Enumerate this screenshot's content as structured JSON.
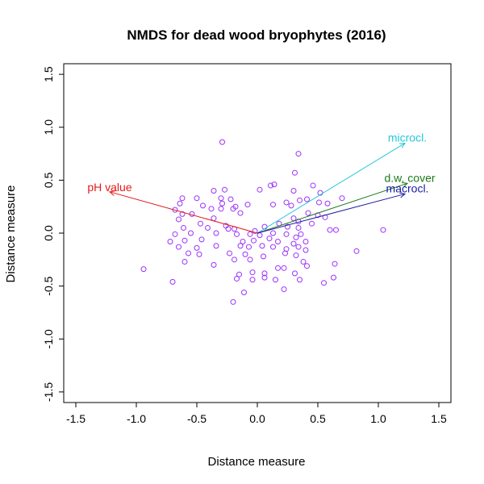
{
  "chart_data": {
    "type": "scatter",
    "title": "NMDS for dead wood bryophytes (2016)",
    "xlabel": "Distance measure",
    "ylabel": "Distance measure",
    "xlim": [
      -1.6,
      1.6
    ],
    "ylim": [
      -1.6,
      1.6
    ],
    "xticks": [
      -1.5,
      -1.0,
      -0.5,
      0.0,
      0.5,
      1.0,
      1.5
    ],
    "yticks": [
      -1.5,
      -1.0,
      -0.5,
      0.0,
      0.5,
      1.0,
      1.5
    ],
    "xtick_labels": [
      "-1.5",
      "-1.0",
      "-0.5",
      "0.0",
      "0.5",
      "1.0",
      "1.5"
    ],
    "ytick_labels": [
      "-1.5",
      "-1.0",
      "-0.5",
      "0.0",
      "0.5",
      "1.0",
      "1.5"
    ],
    "grid": false,
    "point_color": "#9b30ff",
    "points": [
      {
        "x": -0.29,
        "y": 0.86
      },
      {
        "x": 0.34,
        "y": 0.75
      },
      {
        "x": 0.31,
        "y": 0.57
      },
      {
        "x": 0.46,
        "y": 0.45
      },
      {
        "x": 0.14,
        "y": 0.46
      },
      {
        "x": 0.11,
        "y": 0.45
      },
      {
        "x": -0.36,
        "y": 0.4
      },
      {
        "x": -0.27,
        "y": 0.41
      },
      {
        "x": 0.02,
        "y": 0.41
      },
      {
        "x": 0.3,
        "y": 0.4
      },
      {
        "x": 0.52,
        "y": 0.38
      },
      {
        "x": -0.62,
        "y": 0.33
      },
      {
        "x": -0.5,
        "y": 0.33
      },
      {
        "x": -0.3,
        "y": 0.33
      },
      {
        "x": -0.22,
        "y": 0.32
      },
      {
        "x": 0.41,
        "y": 0.32
      },
      {
        "x": 0.7,
        "y": 0.33
      },
      {
        "x": -0.64,
        "y": 0.28
      },
      {
        "x": -0.29,
        "y": 0.28
      },
      {
        "x": 0.24,
        "y": 0.29
      },
      {
        "x": 0.35,
        "y": 0.31
      },
      {
        "x": 0.51,
        "y": 0.29
      },
      {
        "x": 0.58,
        "y": 0.28
      },
      {
        "x": -0.45,
        "y": 0.26
      },
      {
        "x": -0.18,
        "y": 0.25
      },
      {
        "x": -0.08,
        "y": 0.27
      },
      {
        "x": 0.13,
        "y": 0.27
      },
      {
        "x": 0.28,
        "y": 0.26
      },
      {
        "x": -0.68,
        "y": 0.22
      },
      {
        "x": -0.38,
        "y": 0.23
      },
      {
        "x": -0.3,
        "y": 0.23
      },
      {
        "x": -0.2,
        "y": 0.23
      },
      {
        "x": -0.62,
        "y": 0.18
      },
      {
        "x": -0.54,
        "y": 0.18
      },
      {
        "x": -0.14,
        "y": 0.19
      },
      {
        "x": 0.42,
        "y": 0.19
      },
      {
        "x": 0.5,
        "y": 0.17
      },
      {
        "x": 0.56,
        "y": 0.15
      },
      {
        "x": -0.65,
        "y": 0.13
      },
      {
        "x": -0.36,
        "y": 0.14
      },
      {
        "x": 0.3,
        "y": 0.14
      },
      {
        "x": -0.47,
        "y": 0.09
      },
      {
        "x": -0.26,
        "y": 0.07
      },
      {
        "x": 0.18,
        "y": 0.09
      },
      {
        "x": 0.34,
        "y": 0.11
      },
      {
        "x": 0.45,
        "y": 0.09
      },
      {
        "x": -0.61,
        "y": 0.05
      },
      {
        "x": -0.41,
        "y": 0.05
      },
      {
        "x": -0.24,
        "y": 0.04
      },
      {
        "x": -0.19,
        "y": 0.04
      },
      {
        "x": 0.06,
        "y": 0.06
      },
      {
        "x": 0.25,
        "y": 0.06
      },
      {
        "x": 0.34,
        "y": 0.05
      },
      {
        "x": 0.6,
        "y": 0.03
      },
      {
        "x": 0.65,
        "y": 0.03
      },
      {
        "x": 1.04,
        "y": 0.03
      },
      {
        "x": -0.68,
        "y": -0.01
      },
      {
        "x": -0.55,
        "y": 0.0
      },
      {
        "x": -0.34,
        "y": 0.0
      },
      {
        "x": -0.17,
        "y": -0.01
      },
      {
        "x": -0.06,
        "y": -0.01
      },
      {
        "x": -0.02,
        "y": 0.02
      },
      {
        "x": 0.02,
        "y": -0.02
      },
      {
        "x": 0.13,
        "y": 0.0
      },
      {
        "x": 0.24,
        "y": -0.01
      },
      {
        "x": 0.36,
        "y": -0.01
      },
      {
        "x": 0.32,
        "y": -0.04
      },
      {
        "x": -0.72,
        "y": -0.08
      },
      {
        "x": -0.6,
        "y": -0.07
      },
      {
        "x": -0.46,
        "y": -0.06
      },
      {
        "x": -0.12,
        "y": -0.08
      },
      {
        "x": -0.03,
        "y": -0.07
      },
      {
        "x": 0.1,
        "y": -0.05
      },
      {
        "x": 0.17,
        "y": -0.08
      },
      {
        "x": 0.3,
        "y": -0.1
      },
      {
        "x": 0.4,
        "y": -0.08
      },
      {
        "x": -0.65,
        "y": -0.13
      },
      {
        "x": -0.5,
        "y": -0.14
      },
      {
        "x": -0.34,
        "y": -0.12
      },
      {
        "x": -0.14,
        "y": -0.12
      },
      {
        "x": -0.07,
        "y": -0.13
      },
      {
        "x": 0.04,
        "y": -0.12
      },
      {
        "x": 0.13,
        "y": -0.13
      },
      {
        "x": 0.24,
        "y": -0.15
      },
      {
        "x": 0.34,
        "y": -0.13
      },
      {
        "x": 0.4,
        "y": -0.16
      },
      {
        "x": 0.82,
        "y": -0.17
      },
      {
        "x": -0.57,
        "y": -0.19
      },
      {
        "x": -0.48,
        "y": -0.2
      },
      {
        "x": -0.23,
        "y": -0.19
      },
      {
        "x": -0.1,
        "y": -0.2
      },
      {
        "x": 0.05,
        "y": -0.22
      },
      {
        "x": 0.23,
        "y": -0.19
      },
      {
        "x": 0.32,
        "y": -0.21
      },
      {
        "x": -0.6,
        "y": -0.27
      },
      {
        "x": -0.36,
        "y": -0.3
      },
      {
        "x": -0.19,
        "y": -0.25
      },
      {
        "x": -0.06,
        "y": -0.25
      },
      {
        "x": 0.38,
        "y": -0.27
      },
      {
        "x": 0.64,
        "y": -0.29
      },
      {
        "x": -0.94,
        "y": -0.34
      },
      {
        "x": 0.17,
        "y": -0.33
      },
      {
        "x": 0.22,
        "y": -0.33
      },
      {
        "x": 0.41,
        "y": -0.31
      },
      {
        "x": -0.15,
        "y": -0.39
      },
      {
        "x": -0.04,
        "y": -0.37
      },
      {
        "x": 0.06,
        "y": -0.38
      },
      {
        "x": 0.31,
        "y": -0.38
      },
      {
        "x": -0.7,
        "y": -0.46
      },
      {
        "x": -0.17,
        "y": -0.43
      },
      {
        "x": -0.04,
        "y": -0.44
      },
      {
        "x": 0.06,
        "y": -0.42
      },
      {
        "x": 0.15,
        "y": -0.44
      },
      {
        "x": 0.35,
        "y": -0.44
      },
      {
        "x": 0.55,
        "y": -0.47
      },
      {
        "x": 0.63,
        "y": -0.42
      },
      {
        "x": -0.11,
        "y": -0.56
      },
      {
        "x": 0.22,
        "y": -0.53
      },
      {
        "x": -0.2,
        "y": -0.65
      }
    ],
    "vectors": [
      {
        "label": "microcl.",
        "x": 1.22,
        "y": 0.85,
        "color": "#26c6da"
      },
      {
        "label": "d.w. cover",
        "x": 1.24,
        "y": 0.47,
        "color": "#1b7a1b"
      },
      {
        "label": "macrocl.",
        "x": 1.22,
        "y": 0.37,
        "color": "#1a1aa6"
      },
      {
        "label": "pH value",
        "x": -1.22,
        "y": 0.39,
        "color": "#e31a1a"
      }
    ]
  }
}
